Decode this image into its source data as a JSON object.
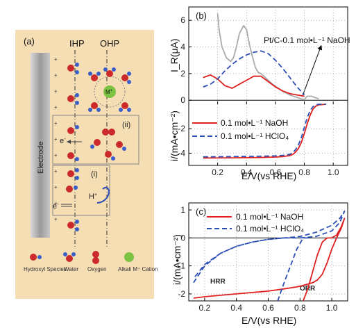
{
  "panel_a": {
    "label": "(a)",
    "ihp": "IHP",
    "ohp": "OHP",
    "electrode": "Electrode",
    "plus_sign": "+",
    "region_ii": "(ii)",
    "region_i": "(i)",
    "e_minus": "e",
    "e_minus_sup": "-",
    "cation_label": "M",
    "cation_sup": "+",
    "h_label": "H",
    "h_sup": "+",
    "legend": {
      "hydroxyl": "Hydroxyl Species",
      "water": "Water",
      "oxygen": "Oxygen",
      "cation": "Alkali M⁺ Cation"
    },
    "colors": {
      "background": "#f5ddb4",
      "oxygen": "#cc2a2a",
      "hydrogen": "#3a5ec8",
      "cation": "#7cc243"
    }
  },
  "panel_b": {
    "label": "(b)",
    "annotation": "Pt/C-0.1 mol•L⁻¹ NaOH",
    "upper_ylabel": "I_R(μA)",
    "lower_ylabel": "i/(mA•cm⁻²)",
    "xlabel": "E/V(vs RHE)",
    "legend": [
      "0.1 mol•L⁻¹ NaOH",
      "0.1 mol•L⁻¹ HClO₄"
    ],
    "x_ticks": [
      "0.2",
      "0.4",
      "0.6",
      "0.8",
      "1.0"
    ],
    "upper_y_ticks": [
      "6",
      "4",
      "2",
      "0"
    ],
    "lower_y_ticks": [
      "-2",
      "-4"
    ]
  },
  "panel_c": {
    "label": "(c)",
    "xlabel": "E/V(vs RHE)",
    "ylabel": "i/(mA•cm⁻²)",
    "legend": [
      "0.1 mol•L⁻¹ NaOH",
      "0.1 mol•L⁻¹ HClO₄"
    ],
    "annotations": [
      "HRR",
      "ORR"
    ],
    "x_ticks": [
      "0.2",
      "0.4",
      "0.6",
      "0.8",
      "1.0"
    ],
    "y_ticks": [
      "1",
      "0",
      "-1",
      "-2"
    ]
  },
  "chart_data": [
    {
      "type": "line",
      "panel": "b-upper",
      "ylabel": "I_R(μA)",
      "xlim": [
        0.0,
        1.1
      ],
      "ylim": [
        -0.3,
        7.0
      ],
      "series": [
        {
          "name": "Pt/C-0.1 mol•L⁻¹ NaOH",
          "color": "#aaaaaa",
          "style": "solid",
          "x": [
            0.2,
            0.21,
            0.23,
            0.26,
            0.29,
            0.31,
            0.33,
            0.35,
            0.38,
            0.4,
            0.42,
            0.44,
            0.46,
            0.48,
            0.5,
            0.52,
            0.55,
            0.58,
            0.62,
            0.66,
            0.7,
            0.74,
            0.78,
            0.8,
            0.82,
            0.85,
            0.9
          ],
          "y": [
            6.5,
            5.3,
            4.0,
            3.2,
            2.9,
            3.2,
            4.0,
            5.0,
            5.6,
            5.3,
            4.2,
            3.3,
            2.5,
            2.1,
            2.0,
            1.8,
            1.5,
            1.2,
            0.9,
            0.6,
            0.4,
            0.25,
            0.1,
            0.05,
            0.3,
            0.3,
            0.1
          ]
        },
        {
          "name": "0.1 mol•L⁻¹ NaOH",
          "color": "#e02020",
          "style": "solid",
          "x": [
            0.1,
            0.15,
            0.2,
            0.25,
            0.3,
            0.35,
            0.4,
            0.45,
            0.5,
            0.55,
            0.6,
            0.65,
            0.7,
            0.75,
            0.8
          ],
          "y": [
            1.7,
            1.9,
            1.6,
            1.1,
            0.9,
            1.2,
            1.5,
            1.8,
            1.8,
            1.4,
            1.0,
            0.7,
            0.5,
            0.4,
            0.3
          ]
        },
        {
          "name": "0.1 mol•L⁻¹ HClO₄",
          "color": "#2c4fb5",
          "style": "dashed",
          "x": [
            0.1,
            0.15,
            0.2,
            0.25,
            0.3,
            0.35,
            0.4,
            0.45,
            0.5,
            0.55,
            0.6,
            0.65,
            0.7,
            0.75,
            0.8
          ],
          "y": [
            1.0,
            1.2,
            1.6,
            2.2,
            2.7,
            3.1,
            3.4,
            3.6,
            3.7,
            3.5,
            3.0,
            2.4,
            1.7,
            1.0,
            0.4
          ]
        }
      ]
    },
    {
      "type": "line",
      "panel": "b-lower",
      "xlabel": "E/V(vs RHE)",
      "ylabel": "i/(mA•cm⁻²)",
      "xlim": [
        0.0,
        1.1
      ],
      "ylim": [
        -5.0,
        0.0
      ],
      "series": [
        {
          "name": "0.1 mol•L⁻¹ NaOH",
          "color": "#e02020",
          "style": "solid",
          "x": [
            0.1,
            0.3,
            0.5,
            0.6,
            0.65,
            0.7,
            0.72,
            0.74,
            0.76,
            0.78,
            0.8,
            0.82,
            0.84,
            0.86,
            0.88,
            0.9,
            0.95
          ],
          "y": [
            -4.4,
            -4.38,
            -4.35,
            -4.32,
            -4.28,
            -4.2,
            -4.1,
            -3.9,
            -3.6,
            -3.1,
            -2.4,
            -1.6,
            -0.9,
            -0.4,
            -0.15,
            -0.05,
            0.0
          ]
        },
        {
          "name": "0.1 mol•L⁻¹ HClO₄",
          "color": "#2c4fb5",
          "style": "dashed",
          "x": [
            0.1,
            0.3,
            0.5,
            0.6,
            0.65,
            0.7,
            0.72,
            0.74,
            0.76,
            0.78,
            0.8,
            0.82,
            0.84,
            0.86,
            0.88,
            0.9,
            0.95
          ],
          "y": [
            -4.3,
            -4.28,
            -4.25,
            -4.22,
            -4.18,
            -4.1,
            -3.95,
            -3.7,
            -3.3,
            -2.7,
            -1.9,
            -1.1,
            -0.5,
            -0.2,
            -0.05,
            0.0,
            0.0
          ]
        }
      ]
    },
    {
      "type": "line",
      "panel": "c",
      "xlabel": "E/V(vs RHE)",
      "ylabel": "i/(mA•cm⁻²)",
      "xlim": [
        0.1,
        1.1
      ],
      "ylim": [
        -2.25,
        1.25
      ],
      "series": [
        {
          "name": "0.1 mol•L⁻¹ NaOH",
          "color": "#e02020",
          "style": "solid",
          "x": [
            0.82,
            0.85,
            0.88,
            0.91,
            0.94,
            0.97,
            1.0,
            1.03,
            1.06,
            1.08,
            1.06,
            1.03,
            1.0,
            0.97,
            0.94,
            0.91,
            0.88,
            0.85,
            0.82,
            0.78,
            0.7,
            0.6,
            0.5,
            0.4,
            0.3,
            0.2,
            0.13
          ],
          "y": [
            -2.25,
            -1.8,
            -1.2,
            -0.6,
            -0.15,
            0.0,
            0.0,
            0.1,
            0.4,
            0.7,
            0.35,
            0.0,
            -0.4,
            -0.9,
            -1.3,
            -1.5,
            -1.6,
            -1.65,
            -1.7,
            -1.75,
            -1.82,
            -1.9,
            -1.95,
            -2.0,
            -2.05,
            -2.1,
            -2.15
          ]
        },
        {
          "name": "0.1 mol•L⁻¹ HClO₄",
          "color": "#2c4fb5",
          "style": "dashed",
          "x": [
            0.13,
            0.2,
            0.3,
            0.4,
            0.5,
            0.6,
            0.7,
            0.8,
            0.9,
            1.0,
            1.05,
            1.08,
            1.05,
            1.0,
            0.9,
            0.8,
            0.7,
            0.6,
            0.5,
            0.4,
            0.3,
            0.2,
            0.13
          ],
          "y": [
            -1.6,
            -1.0,
            -0.55,
            -0.3,
            -0.15,
            -0.05,
            0.0,
            0.0,
            0.05,
            0.25,
            0.55,
            0.95,
            0.7,
            0.45,
            0.2,
            0.05,
            0.0,
            -0.05,
            -0.15,
            -0.3,
            -0.55,
            -0.95,
            -1.45
          ]
        },
        {
          "name": "ORR (HClO₄)",
          "color": "#2c4fb5",
          "style": "dashed",
          "x": [
            0.66,
            0.7,
            0.74,
            0.78,
            0.82,
            0.86
          ],
          "y": [
            -2.25,
            -1.6,
            -1.0,
            -0.4,
            0.0,
            0.0
          ]
        }
      ]
    }
  ]
}
